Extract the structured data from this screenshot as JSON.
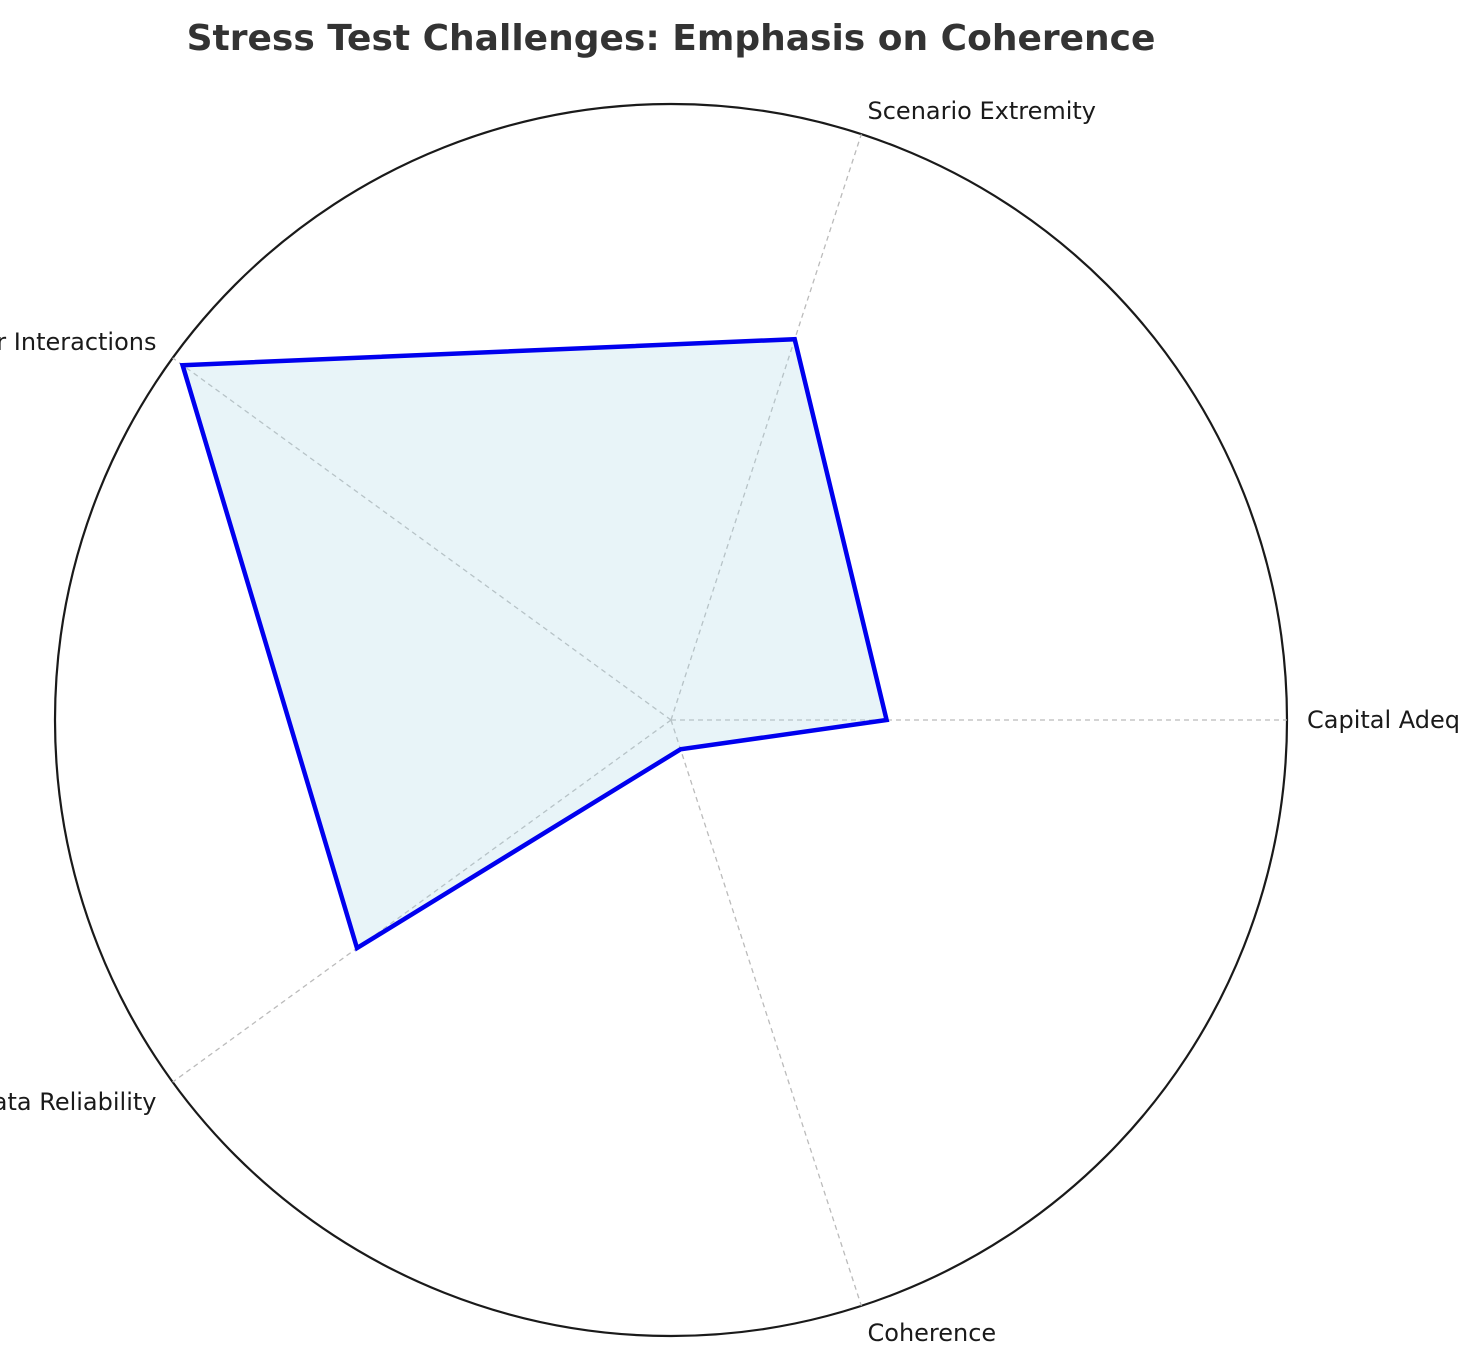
{
  "chart_data": {
    "type": "radar",
    "title": "Stress Test Challenges: Emphasis on Coherence",
    "categories": [
      "Capital Adequacy",
      "Scenario Extremity",
      "Factor Interactions",
      "Data Reliability",
      "Coherence"
    ],
    "series": [
      {
        "values": [
          3.5,
          6.5,
          9.8,
          6.3,
          0.5
        ],
        "line_color": "#0000ee",
        "fill_color": "#add8e6"
      }
    ],
    "rlim": [
      0,
      10
    ],
    "grid": true,
    "radial_tick_labels": false,
    "frame_color": "#1a1a1a",
    "grid_color": "#bbbbbb"
  }
}
